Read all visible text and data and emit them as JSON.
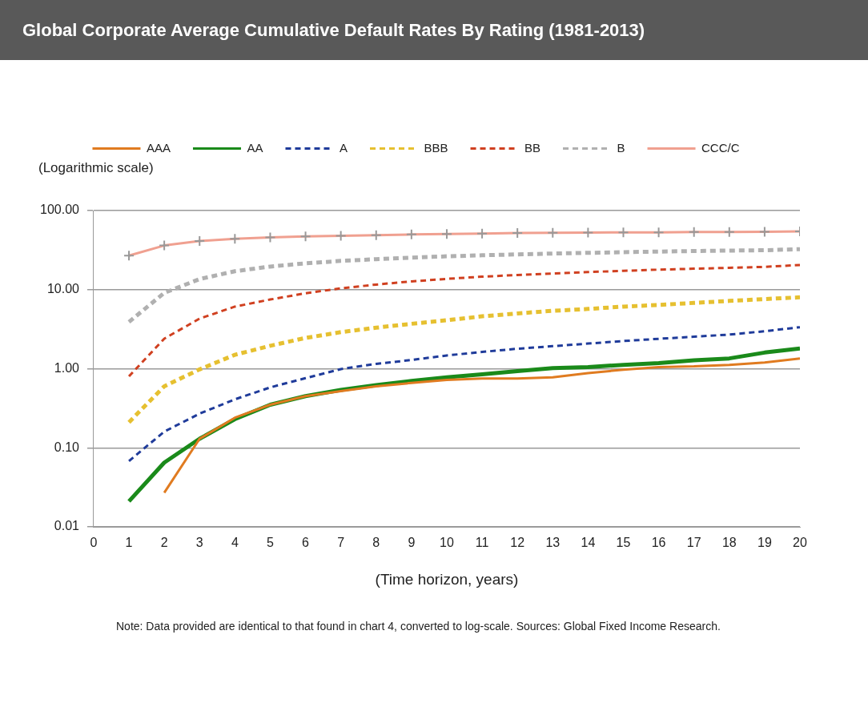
{
  "chart_data": {
    "type": "line",
    "title": "Global Corporate Average Cumulative Default Rates By Rating (1981-2013)",
    "ylabel": "(Logarithmic scale)",
    "xlabel": "(Time horizon, years)",
    "x": [
      1,
      2,
      3,
      4,
      5,
      6,
      7,
      8,
      9,
      10,
      11,
      12,
      13,
      14,
      15,
      16,
      17,
      18,
      19,
      20
    ],
    "series": [
      {
        "name": "AAA",
        "color": "#e07b20",
        "line_style": "solid",
        "marker": "none",
        "values": [
          null,
          0.027,
          0.13,
          0.24,
          0.35,
          0.45,
          0.52,
          0.6,
          0.66,
          0.72,
          0.75,
          0.75,
          0.78,
          0.88,
          0.97,
          1.05,
          1.07,
          1.12,
          1.2,
          1.35
        ]
      },
      {
        "name": "AA",
        "color": "#1a8a1a",
        "line_style": "solid",
        "marker": "none",
        "values": [
          0.021,
          0.065,
          0.13,
          0.23,
          0.35,
          0.45,
          0.54,
          0.62,
          0.7,
          0.78,
          0.85,
          0.93,
          1.02,
          1.05,
          1.12,
          1.18,
          1.28,
          1.35,
          1.6,
          1.8
        ]
      },
      {
        "name": "A",
        "color": "#1f3b9a",
        "line_style": "dashed",
        "marker": "none",
        "values": [
          0.068,
          0.16,
          0.27,
          0.41,
          0.58,
          0.76,
          0.99,
          1.15,
          1.29,
          1.47,
          1.63,
          1.79,
          1.93,
          2.08,
          2.24,
          2.39,
          2.54,
          2.7,
          2.98,
          3.35
        ]
      },
      {
        "name": "BBB",
        "color": "#e6c030",
        "line_style": "dashed",
        "marker": "none",
        "values": [
          0.21,
          0.6,
          0.98,
          1.5,
          1.95,
          2.45,
          2.9,
          3.3,
          3.7,
          4.1,
          4.6,
          5.0,
          5.4,
          5.7,
          6.1,
          6.4,
          6.8,
          7.2,
          7.6,
          8.0
        ]
      },
      {
        "name": "BB",
        "color": "#d04020",
        "line_style": "dashed",
        "marker": "none",
        "values": [
          0.8,
          2.4,
          4.3,
          6.1,
          7.5,
          9.0,
          10.4,
          11.6,
          12.7,
          13.7,
          14.6,
          15.3,
          16.0,
          16.7,
          17.3,
          17.9,
          18.4,
          18.9,
          19.4,
          20.5
        ]
      },
      {
        "name": "B",
        "color": "#b0b0b0",
        "line_style": "dashed",
        "marker": "none",
        "values": [
          3.9,
          9.1,
          13.6,
          17.1,
          19.6,
          21.5,
          23.1,
          24.3,
          25.4,
          26.4,
          27.2,
          27.9,
          28.6,
          29.2,
          29.8,
          30.3,
          30.8,
          31.2,
          31.5,
          32.5
        ]
      },
      {
        "name": "CCC/C",
        "color": "#f0a090",
        "line_style": "solid",
        "marker": "cross",
        "values": [
          26.9,
          36.2,
          41.2,
          44.0,
          45.9,
          47.1,
          47.9,
          48.9,
          49.9,
          50.6,
          51.2,
          52.1,
          52.5,
          52.8,
          53.0,
          53.0,
          53.5,
          53.7,
          53.9,
          54.5
        ]
      }
    ],
    "log": "y",
    "ylim": [
      0.01,
      100
    ],
    "yticks": [
      {
        "value": 0.01,
        "label": "0.01"
      },
      {
        "value": 0.1,
        "label": "0.10"
      },
      {
        "value": 1,
        "label": "1.00"
      },
      {
        "value": 10,
        "label": "10.00"
      },
      {
        "value": 100,
        "label": "100.00"
      }
    ],
    "xlim": [
      0,
      20
    ],
    "xticks": [
      0,
      1,
      2,
      3,
      4,
      5,
      6,
      7,
      8,
      9,
      10,
      11,
      12,
      13,
      14,
      15,
      16,
      17,
      18,
      19,
      20
    ],
    "grid": "y",
    "legend": "top",
    "annotations": [
      "Note: Data provided are identical to that found in chart 4, converted to log-scale.  Sources: Global Fixed Income Research."
    ]
  }
}
